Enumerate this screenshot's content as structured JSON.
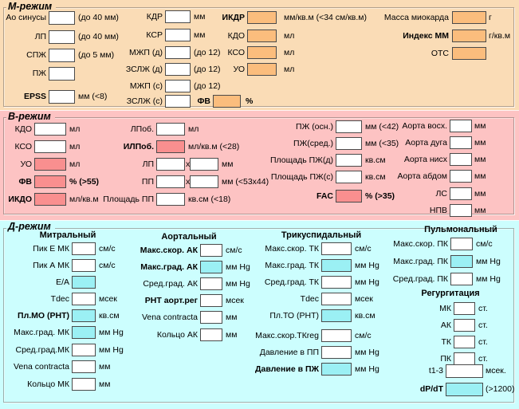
{
  "colors": {
    "m_band_bg": "#FADCB6",
    "m_fill": "#FBBD7D",
    "b_band_bg": "#FDC3C3",
    "b_fill": "#F98F8F",
    "d_band_bg": "#CCFEFE",
    "d_fill": "#9BF0F4",
    "input_bg": "#FFFFFF",
    "input_border": "#4A4A4A",
    "text": "#000000"
  },
  "m_mode": {
    "title": "М-режим",
    "left_column": [
      {
        "label": "Ао синусы",
        "value": "",
        "note": "(до 40 мм)"
      },
      {
        "label": "ЛП",
        "value": "",
        "note": "(до 40 мм)"
      },
      {
        "label": "СПЖ",
        "value": "",
        "note": "(до 5 мм)"
      },
      {
        "label": "ПЖ",
        "value": "",
        "note": ""
      },
      {
        "label": "EPSS",
        "bold": true,
        "value": "",
        "note": "мм (<8)"
      }
    ],
    "dimensions_column": [
      {
        "label": "КДР",
        "value": "",
        "note": "мм"
      },
      {
        "label": "КСР",
        "value": "",
        "note": "мм"
      },
      {
        "label": "МЖП (д)",
        "value": "",
        "note": "(до 12)"
      },
      {
        "label": "ЗСЛЖ (д)",
        "value": "",
        "note": "(до 12)"
      },
      {
        "label": "МЖП (с)",
        "value": "",
        "note": "(до 12)"
      },
      {
        "label": "ЗСЛЖ (с)",
        "value": "",
        "note": ""
      }
    ],
    "ef_field": {
      "label": "ФВ",
      "bold": true,
      "filled": true,
      "value": "",
      "note": "%",
      "note_bold": true
    },
    "index_column": [
      {
        "label": "ИКДР",
        "bold": true,
        "filled": true,
        "value": "",
        "note": "мм/кв.м (<34 см/кв.м)"
      },
      {
        "label": "КДО",
        "filled": true,
        "value": "",
        "note": "мл"
      },
      {
        "label": "КСО",
        "filled": true,
        "value": "",
        "note": "мл"
      },
      {
        "label": "УО",
        "filled": true,
        "value": "",
        "note": "мл"
      }
    ],
    "mass_column": [
      {
        "label": "Масса миокарда",
        "filled": true,
        "value": "",
        "note": "г"
      },
      {
        "label": "Индекс ММ",
        "bold": true,
        "filled": true,
        "value": "",
        "note": "г/кв.м"
      },
      {
        "label": "ОТС",
        "filled": true,
        "value": "",
        "note": ""
      }
    ]
  },
  "b_mode": {
    "title": "В-режим",
    "lv_column": [
      {
        "label": "КДО",
        "value": "",
        "note": "мл"
      },
      {
        "label": "КСО",
        "value": "",
        "note": "мл"
      },
      {
        "label": "УО",
        "filled": true,
        "value": "",
        "note": "мл"
      },
      {
        "label": "ФВ",
        "bold": true,
        "filled": true,
        "value": "",
        "note": "% (>55)",
        "note_bold": true
      },
      {
        "label": "ИКДО",
        "bold": true,
        "filled": true,
        "value": "",
        "note": "мл/кв.м"
      }
    ],
    "la_column": [
      {
        "label": "ЛПоб.",
        "value": "",
        "note": "мл"
      },
      {
        "label": "ИЛПоб.",
        "bold": true,
        "filled": true,
        "value": "",
        "note": "мл/кв.м (<28)"
      },
      {
        "label": "ЛП",
        "dual": true,
        "sep": "x",
        "value": "",
        "value2": "",
        "note": "мм"
      },
      {
        "label": "ПП",
        "dual": true,
        "sep": "x",
        "value": "",
        "value2": "",
        "note": "мм (<53x44)"
      },
      {
        "label": "Площадь ПП",
        "value": "",
        "note": "кв.см (<18)"
      }
    ],
    "rv_column": [
      {
        "label": "ПЖ (осн.)",
        "value": "",
        "note": "мм (<42)"
      },
      {
        "label": "ПЖ(сред.)",
        "value": "",
        "note": "мм (<35)"
      },
      {
        "label": "Площадь ПЖ(д)",
        "value": "",
        "note": "кв.см"
      },
      {
        "label": "Площадь ПЖ(с)",
        "value": "",
        "note": "кв.см"
      },
      {
        "label": "FAC",
        "bold": true,
        "filled": true,
        "value": "",
        "note": "% (>35)",
        "note_bold": true
      }
    ],
    "aorta_column": [
      {
        "label": "Аорта восх.",
        "value": "",
        "note": "мм"
      },
      {
        "label": "Аорта дуга",
        "value": "",
        "note": "мм"
      },
      {
        "label": "Аорта нисх",
        "value": "",
        "note": "мм"
      },
      {
        "label": "Аорта абдом",
        "value": "",
        "note": "мм"
      },
      {
        "label": "ЛС",
        "value": "",
        "note": "мм"
      },
      {
        "label": "НПВ",
        "value": "",
        "note": "мм"
      }
    ]
  },
  "d_mode": {
    "title": "Д-режим",
    "groups": [
      {
        "header": "Митральный",
        "fields": [
          {
            "label": "Пик Е МК",
            "value": "",
            "note": "см/с"
          },
          {
            "label": "Пик А МК",
            "value": "",
            "note": "см/с"
          },
          {
            "label": "E/A",
            "filled": true,
            "value": "",
            "note": ""
          },
          {
            "label": "Tdec",
            "value": "",
            "note": "мсек"
          },
          {
            "label": "Пл.МО (PHT)",
            "bold": true,
            "filled": true,
            "value": "",
            "note": "кв.см"
          },
          {
            "label": "Макс.град. МК",
            "filled": true,
            "value": "",
            "note": "мм Hg"
          },
          {
            "label": "Сред.град.МК",
            "value": "",
            "note": "мм Hg"
          },
          {
            "label": "Vena contracta",
            "value": "",
            "note": "мм"
          },
          {
            "label": "Кольцо МК",
            "value": "",
            "note": "мм"
          }
        ]
      },
      {
        "header": "Аортальный",
        "fields": [
          {
            "label": "Макс.скор. АК",
            "bold": true,
            "value": "",
            "note": "см/с"
          },
          {
            "label": "Макс.град. АК",
            "bold": true,
            "filled": true,
            "value": "",
            "note": "мм Hg"
          },
          {
            "label": "Сред.град. АК",
            "value": "",
            "note": "мм Hg"
          },
          {
            "label": "PHT аорт.рег",
            "bold": true,
            "value": "",
            "note": "мсек"
          },
          {
            "label": "Vena contracta",
            "value": "",
            "note": "мм"
          },
          {
            "label": "Кольцо АК",
            "value": "",
            "note": "мм"
          }
        ]
      },
      {
        "header": "Трикуспидальный",
        "fields": [
          {
            "label": "Макс.скор. ТК",
            "value": "",
            "note": "см/с"
          },
          {
            "label": "Макс.град. ТК",
            "filled": true,
            "value": "",
            "note": "мм Hg"
          },
          {
            "label": "Сред.град. ТК",
            "value": "",
            "note": "мм Hg"
          },
          {
            "label": "Tdec",
            "value": "",
            "note": "мсек"
          },
          {
            "label": "Пл.ТО (PHT)",
            "filled": true,
            "value": "",
            "note": "кв.см"
          },
          {
            "label": "Макс.скор.ТКreg",
            "value": "",
            "note": "см/с"
          },
          {
            "label": "Давление в ПП",
            "value": "",
            "note": "мм Hg"
          },
          {
            "label": "Давление в ПЖ",
            "bold": true,
            "filled": true,
            "value": "",
            "note": "мм Hg"
          }
        ]
      },
      {
        "header": "Пульмональный",
        "fields": [
          {
            "label": "Макс.скор. ПК",
            "value": "",
            "note": "см/с"
          },
          {
            "label": "Макс.град. ПК",
            "filled": true,
            "value": "",
            "note": "мм Hg"
          },
          {
            "label": "Сред.град. ПК",
            "value": "",
            "note": "мм Hg"
          }
        ]
      }
    ],
    "regurgitation": {
      "header": "Регургитация",
      "fields": [
        {
          "label": "МК",
          "value": "",
          "note": "ст."
        },
        {
          "label": "АК",
          "value": "",
          "note": "ст."
        },
        {
          "label": "ТК",
          "value": "",
          "note": "ст."
        },
        {
          "label": "ПК",
          "value": "",
          "note": "ст."
        }
      ]
    },
    "bottom_fields": [
      {
        "label": "t1-3",
        "value": "",
        "note": "мсек."
      },
      {
        "label": "dP/dT",
        "bold": true,
        "filled": true,
        "value": "",
        "note": "(>1200)"
      }
    ]
  }
}
